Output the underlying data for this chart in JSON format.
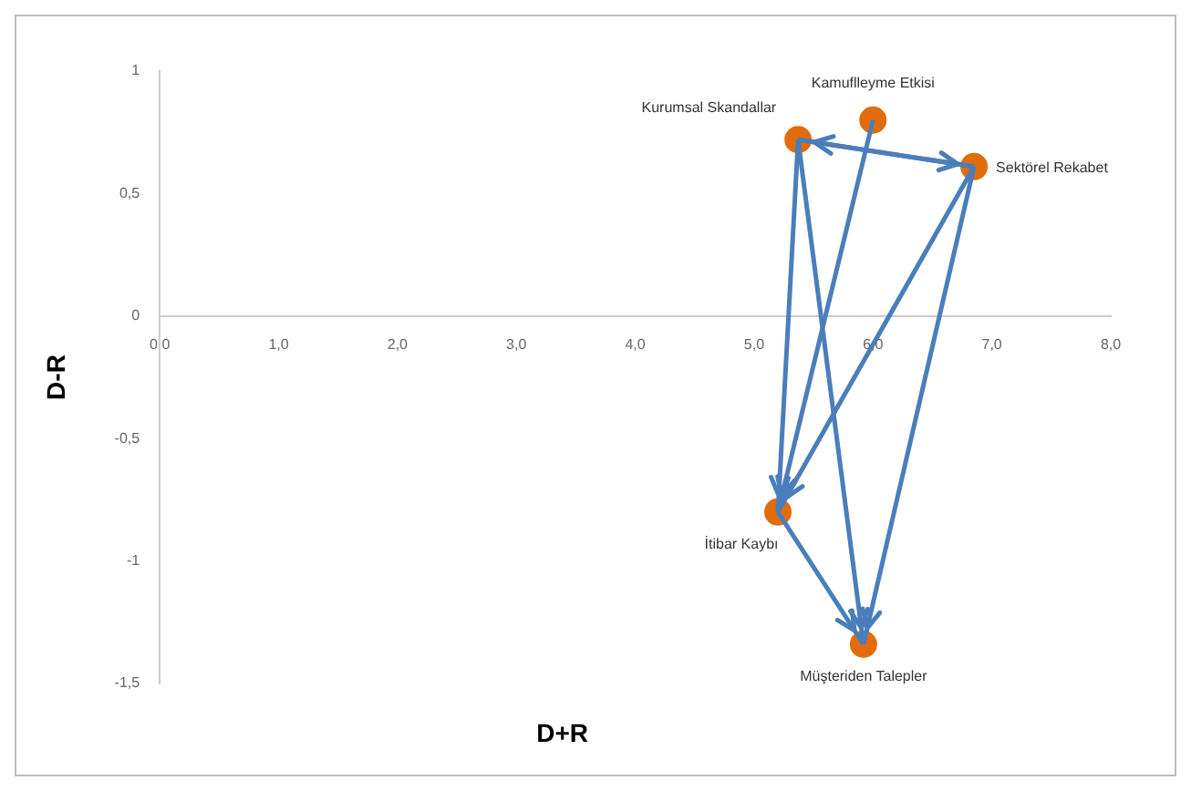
{
  "chart_data": {
    "type": "scatter",
    "xlabel": "D+R",
    "ylabel": "D-R",
    "xlim": [
      0,
      8
    ],
    "xticks": [
      {
        "value": 0,
        "label": "0,0"
      },
      {
        "value": 1,
        "label": "1,0"
      },
      {
        "value": 2,
        "label": "2,0"
      },
      {
        "value": 3,
        "label": "3,0"
      },
      {
        "value": 4,
        "label": "4,0"
      },
      {
        "value": 5,
        "label": "5,0"
      },
      {
        "value": 6,
        "label": "6,0"
      },
      {
        "value": 7,
        "label": "7,0"
      },
      {
        "value": 8,
        "label": "8,0"
      }
    ],
    "ylim": [
      -1.5,
      1
    ],
    "yticks": [
      {
        "value": -1.5,
        "label": "-1,5"
      },
      {
        "value": -1,
        "label": "-1"
      },
      {
        "value": -0.5,
        "label": "-0,5"
      },
      0,
      {
        "value": 0.5,
        "label": "0,5"
      },
      1
    ],
    "grid": false,
    "legend": false,
    "marker": "circle",
    "series": [
      {
        "color": "#e36c0a",
        "x": [
          5.37,
          6.0,
          6.85,
          5.2,
          5.92
        ],
        "values": [
          0.72,
          0.8,
          0.61,
          -0.8,
          -1.34
        ]
      },
      {
        "type": "line",
        "color": "#4a7ebb",
        "marker": "none",
        "x": [
          5.37,
          6.85
        ],
        "values": [
          0.72,
          0.61
        ]
      },
      {
        "type": "line",
        "color": "#4a7ebb",
        "marker": "none",
        "x": [
          6.85,
          5.37
        ],
        "values": [
          0.61,
          0.72
        ]
      },
      {
        "type": "line",
        "color": "#4a7ebb",
        "marker": "none",
        "x": [
          5.37,
          5.2
        ],
        "values": [
          0.72,
          -0.8
        ]
      },
      {
        "type": "line",
        "color": "#4a7ebb",
        "marker": "none",
        "x": [
          5.37,
          5.92
        ],
        "values": [
          0.72,
          -1.34
        ]
      },
      {
        "type": "line",
        "color": "#4a7ebb",
        "marker": "none",
        "x": [
          6.0,
          5.2
        ],
        "values": [
          0.8,
          -0.8
        ]
      },
      {
        "type": "line",
        "color": "#4a7ebb",
        "marker": "none",
        "x": [
          6.85,
          5.2
        ],
        "values": [
          0.61,
          -0.8
        ]
      },
      {
        "type": "line",
        "color": "#4a7ebb",
        "marker": "none",
        "x": [
          6.85,
          5.92
        ],
        "values": [
          0.61,
          -1.34
        ]
      },
      {
        "type": "line",
        "color": "#4a7ebb",
        "marker": "none",
        "x": [
          5.2,
          5.92
        ],
        "values": [
          -0.8,
          -1.34
        ]
      }
    ],
    "annotations": [
      {
        "text": "Kurumsal Skandallar",
        "x": 5.37,
        "y": 0.72
      },
      {
        "text": "Kamuflleyme Etkisi",
        "x": 6.0,
        "y": 0.8
      },
      {
        "text": "Sektörel Rekabet",
        "x": 6.85,
        "y": 0.61
      },
      {
        "text": "İtibar Kaybı",
        "x": 5.2,
        "y": -0.8
      },
      {
        "text": "Müşteriden Talepler",
        "x": 5.92,
        "y": -1.34
      }
    ]
  }
}
